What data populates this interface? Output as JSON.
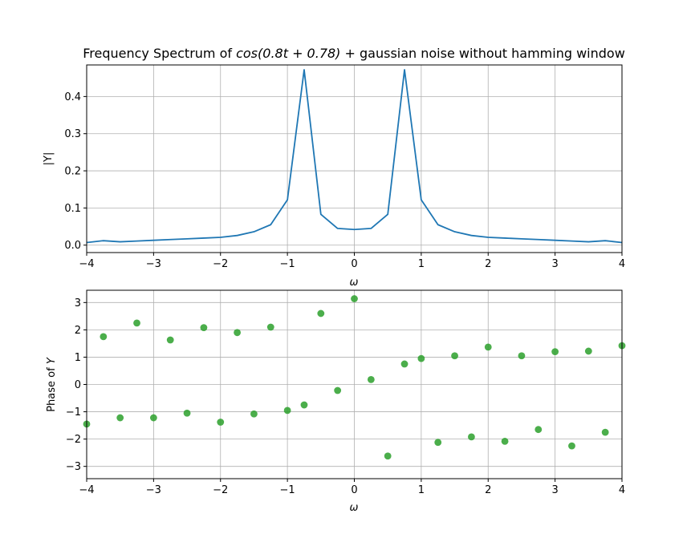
{
  "chart_data": [
    {
      "type": "line",
      "title_prefix": "Frequency Spectrum of ",
      "title_math": "cos(0.8t + 0.78)",
      "title_suffix": " + gaussian noise without hamming window",
      "xlabel": "ω",
      "ylabel": "|Y|",
      "xlim": [
        -4,
        4
      ],
      "ylim": [
        -0.02,
        0.485
      ],
      "xticks": [
        -4,
        -3,
        -2,
        -1,
        0,
        1,
        2,
        3,
        4
      ],
      "xtick_labels": [
        "−4",
        "−3",
        "−2",
        "−1",
        "0",
        "1",
        "2",
        "3",
        "4"
      ],
      "yticks": [
        0.0,
        0.1,
        0.2,
        0.3,
        0.4
      ],
      "ytick_labels": [
        "0.0",
        "0.1",
        "0.2",
        "0.3",
        "0.4"
      ],
      "grid": true,
      "color": "#1f77b4",
      "x": [
        -4,
        -3.75,
        -3.5,
        -3.25,
        -3,
        -2.75,
        -2.5,
        -2.25,
        -2,
        -1.75,
        -1.5,
        -1.25,
        -1,
        -0.75,
        -0.5,
        -0.25,
        0,
        0.25,
        0.5,
        0.75,
        1,
        1.25,
        1.5,
        1.75,
        2,
        2.25,
        2.5,
        2.75,
        3,
        3.25,
        3.5,
        3.75,
        4
      ],
      "y": [
        0.007,
        0.012,
        0.009,
        0.011,
        0.013,
        0.015,
        0.017,
        0.019,
        0.021,
        0.026,
        0.036,
        0.055,
        0.122,
        0.472,
        0.083,
        0.045,
        0.042,
        0.045,
        0.083,
        0.472,
        0.122,
        0.055,
        0.036,
        0.026,
        0.021,
        0.019,
        0.017,
        0.015,
        0.013,
        0.011,
        0.009,
        0.012,
        0.007
      ]
    },
    {
      "type": "scatter",
      "xlabel": "ω",
      "ylabel_prefix": "Phase of ",
      "ylabel_math": "Y",
      "xlim": [
        -4,
        4
      ],
      "ylim": [
        -3.45,
        3.45
      ],
      "xticks": [
        -4,
        -3,
        -2,
        -1,
        0,
        1,
        2,
        3,
        4
      ],
      "xtick_labels": [
        "−4",
        "−3",
        "−2",
        "−1",
        "0",
        "1",
        "2",
        "3",
        "4"
      ],
      "yticks": [
        -3,
        -2,
        -1,
        0,
        1,
        2,
        3
      ],
      "ytick_labels": [
        "−3",
        "−2",
        "−1",
        "0",
        "1",
        "2",
        "3"
      ],
      "grid": true,
      "color": "#2ca02c",
      "x": [
        -4,
        -3.75,
        -3.5,
        -3.25,
        -3,
        -2.75,
        -2.5,
        -2.25,
        -2,
        -1.75,
        -1.5,
        -1.25,
        -1,
        -0.75,
        -0.5,
        -0.25,
        0,
        0.25,
        0.5,
        0.75,
        1,
        1.25,
        1.5,
        1.75,
        2,
        2.25,
        2.5,
        2.75,
        3,
        3.25,
        3.5,
        3.75,
        4
      ],
      "y": [
        -1.45,
        1.75,
        -1.22,
        2.25,
        -1.22,
        1.63,
        -1.05,
        2.08,
        -1.38,
        1.9,
        -1.08,
        2.1,
        -0.95,
        -0.75,
        2.6,
        -0.22,
        3.14,
        0.18,
        -2.62,
        0.75,
        0.95,
        -2.12,
        1.05,
        -1.92,
        1.37,
        -2.08,
        1.05,
        -1.65,
        1.2,
        -2.25,
        1.22,
        -1.75,
        1.42
      ]
    }
  ]
}
